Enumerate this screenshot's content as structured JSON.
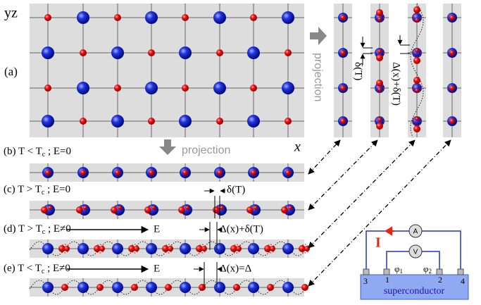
{
  "panel_a": {
    "label": "(a)",
    "axis_yz": "yz",
    "axis_x": "x",
    "projection": "projection"
  },
  "side_columns": {
    "delta_label": "δ(T)",
    "delta_sum_label": "Δ(x)+δ(T)"
  },
  "panel_b": {
    "label": "(b)",
    "condition": [
      "T < T",
      "c",
      " ; E=0"
    ],
    "projection": "projection"
  },
  "panel_c": {
    "label": "(c)",
    "condition": [
      "T > T",
      "c",
      " ; E=0"
    ],
    "shift_label": "δ(T)"
  },
  "panel_d": {
    "label": "(d)",
    "condition": [
      "T > T",
      "c",
      " ; E≠0"
    ],
    "field": "E",
    "shift_label": "Δ(x)+δ(T)"
  },
  "panel_e": {
    "label": "(e)",
    "condition": [
      "T < T",
      "c",
      " ; E≠0"
    ],
    "field": "E",
    "shift_label": "Δ(x)=Δ"
  },
  "circuit": {
    "current": "I",
    "ammeter": "A",
    "voltmeter": "V",
    "contacts": [
      "3",
      "1",
      "2",
      "4"
    ],
    "phases": [
      [
        "φ",
        "1"
      ],
      [
        "φ",
        "2"
      ]
    ],
    "material": "superconductor"
  }
}
